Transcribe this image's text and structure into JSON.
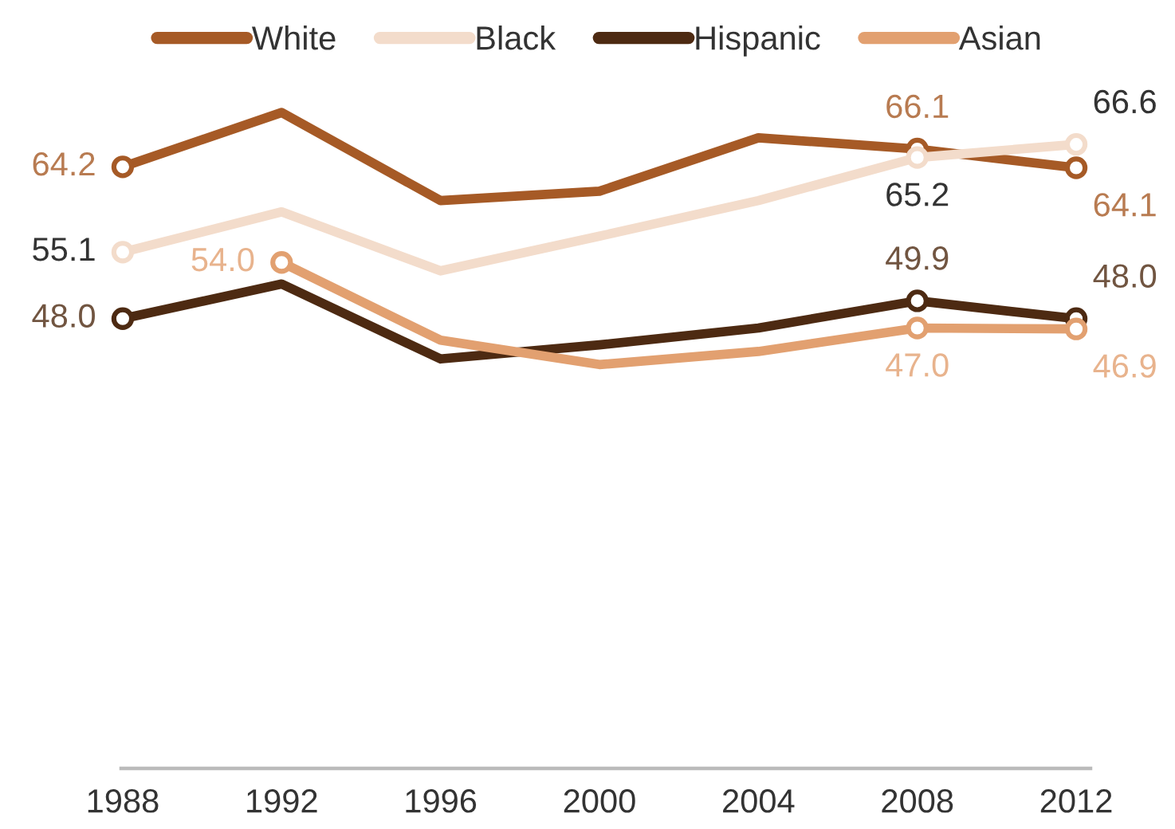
{
  "chart_data": {
    "type": "line",
    "categories": [
      "1988",
      "1992",
      "1996",
      "2000",
      "2004",
      "2008",
      "2012"
    ],
    "series": [
      {
        "name": "White",
        "color": "#a65a26",
        "values": [
          64.2,
          70.0,
          60.6,
          61.6,
          67.3,
          66.1,
          64.1
        ],
        "value_labels": [
          "64.2",
          null,
          null,
          null,
          null,
          "66.1",
          "64.1"
        ]
      },
      {
        "name": "Black",
        "color": "#f3dccb",
        "values": [
          55.1,
          59.4,
          53.1,
          56.8,
          60.6,
          65.2,
          66.6
        ],
        "value_labels": [
          "55.1",
          null,
          null,
          null,
          null,
          "65.2",
          "66.6"
        ]
      },
      {
        "name": "Hispanic",
        "color": "#4d2a12",
        "values": [
          48.0,
          51.7,
          43.7,
          45.2,
          47.0,
          49.9,
          48.0
        ],
        "value_labels": [
          "48.0",
          null,
          null,
          null,
          null,
          "49.9",
          "48.0"
        ]
      },
      {
        "name": "Asian",
        "color": "#e2a070",
        "values": [
          null,
          54.0,
          45.7,
          43.1,
          44.5,
          47.0,
          46.9
        ],
        "value_labels": [
          null,
          "54.0",
          null,
          null,
          null,
          "47.0",
          "46.9"
        ]
      }
    ],
    "tick_labels": "x",
    "legend": "top"
  }
}
